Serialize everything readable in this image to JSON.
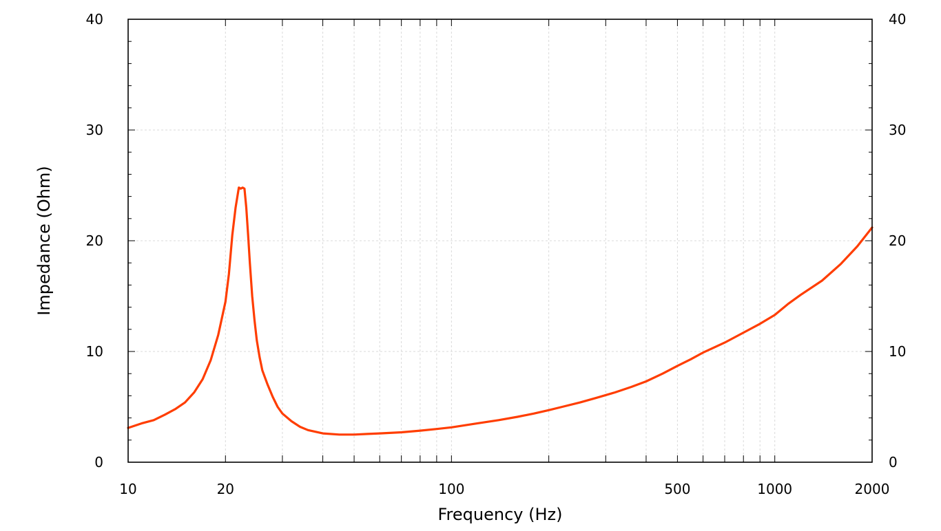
{
  "chart_data": {
    "type": "line",
    "xlabel": "Frequency (Hz)",
    "ylabel": "Impedance (Ohm)",
    "x_scale": "log",
    "xlim": [
      10,
      2000
    ],
    "ylim": [
      0,
      40
    ],
    "grid": true,
    "x_tick_labels": [
      {
        "value": 10,
        "label": "10"
      },
      {
        "value": 20,
        "label": "20"
      },
      {
        "value": 100,
        "label": "100"
      },
      {
        "value": 500,
        "label": "500"
      },
      {
        "value": 1000,
        "label": "1000"
      },
      {
        "value": 2000,
        "label": "2000"
      }
    ],
    "y_tick_labels": [
      {
        "value": 0,
        "label": "0"
      },
      {
        "value": 10,
        "label": "10"
      },
      {
        "value": 20,
        "label": "20"
      },
      {
        "value": 30,
        "label": "30"
      },
      {
        "value": 40,
        "label": "40"
      }
    ],
    "series": [
      {
        "color": "#ff3d00",
        "x": [
          10,
          11,
          12,
          13,
          14,
          15,
          16,
          17,
          18,
          19,
          20,
          20.5,
          21,
          21.5,
          22,
          22.3,
          22.6,
          22.9,
          23.2,
          23.5,
          23.8,
          24.2,
          24.6,
          25,
          25.5,
          26,
          27,
          28,
          29,
          30,
          32,
          34,
          36,
          40,
          45,
          50,
          55,
          60,
          70,
          80,
          90,
          100,
          120,
          140,
          160,
          180,
          200,
          220,
          250,
          280,
          320,
          360,
          400,
          450,
          500,
          550,
          600,
          700,
          800,
          900,
          1000,
          1100,
          1200,
          1400,
          1600,
          1800,
          2000
        ],
        "y": [
          3.1,
          3.5,
          3.8,
          4.3,
          4.8,
          5.4,
          6.3,
          7.5,
          9.2,
          11.5,
          14.5,
          17.0,
          20.5,
          23.0,
          24.8,
          24.7,
          24.8,
          24.7,
          23.0,
          20.5,
          18.0,
          15.0,
          12.8,
          11.0,
          9.5,
          8.3,
          7.0,
          5.9,
          5.0,
          4.4,
          3.7,
          3.2,
          2.9,
          2.6,
          2.5,
          2.5,
          2.55,
          2.6,
          2.7,
          2.85,
          3.0,
          3.15,
          3.5,
          3.8,
          4.1,
          4.4,
          4.7,
          5.0,
          5.4,
          5.8,
          6.3,
          6.8,
          7.3,
          8.0,
          8.7,
          9.3,
          9.9,
          10.8,
          11.7,
          12.5,
          13.3,
          14.3,
          15.1,
          16.4,
          17.9,
          19.5,
          21.2
        ]
      }
    ]
  }
}
